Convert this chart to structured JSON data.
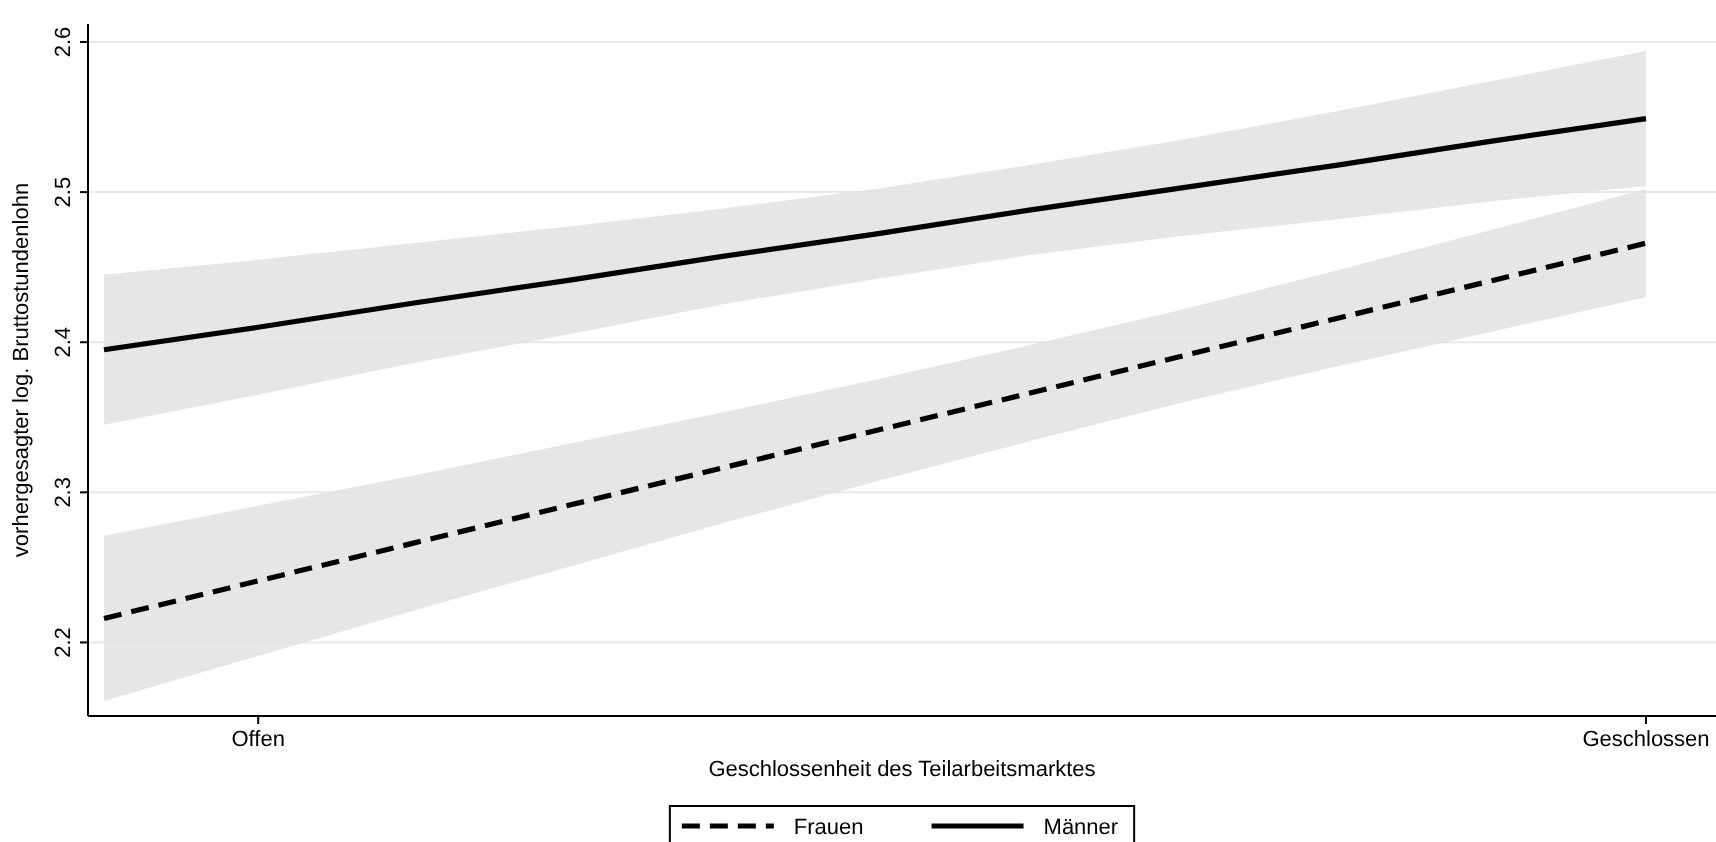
{
  "chart_data": {
    "type": "line",
    "xlabel": "Geschlossenheit des Teilarbeitsmarktes",
    "ylabel": "vorhergesagter log. Bruttostundenlohn",
    "categories": [
      null,
      "Offen",
      null,
      null,
      null,
      null,
      null,
      null,
      null,
      null,
      "Geschlossen"
    ],
    "ylim": [
      2.151,
      2.612
    ],
    "yticks": [
      2.2,
      2.3,
      2.4,
      2.5,
      2.6
    ],
    "grid": "y",
    "legend": "bottom",
    "marker": "none",
    "series": [
      {
        "name": "Frauen",
        "color": "#000000",
        "line_style": "dashed",
        "values": [
          2.216,
          2.241,
          2.266,
          2.291,
          2.316,
          2.341,
          2.366,
          2.391,
          2.416,
          2.441,
          2.466
        ],
        "lower": [
          2.161,
          2.191,
          2.221,
          2.25,
          2.279,
          2.307,
          2.334,
          2.36,
          2.384,
          2.407,
          2.43
        ],
        "upper": [
          2.271,
          2.291,
          2.311,
          2.332,
          2.353,
          2.375,
          2.398,
          2.422,
          2.448,
          2.475,
          2.502
        ]
      },
      {
        "name": "Männer",
        "color": "#000000",
        "line_style": "solid",
        "values": [
          2.395,
          2.41,
          2.426,
          2.441,
          2.457,
          2.472,
          2.488,
          2.503,
          2.518,
          2.534,
          2.549
        ],
        "lower": [
          2.345,
          2.365,
          2.386,
          2.405,
          2.425,
          2.442,
          2.458,
          2.471,
          2.482,
          2.494,
          2.504
        ],
        "upper": [
          2.445,
          2.455,
          2.466,
          2.477,
          2.489,
          2.502,
          2.518,
          2.535,
          2.554,
          2.574,
          2.594
        ]
      }
    ]
  }
}
